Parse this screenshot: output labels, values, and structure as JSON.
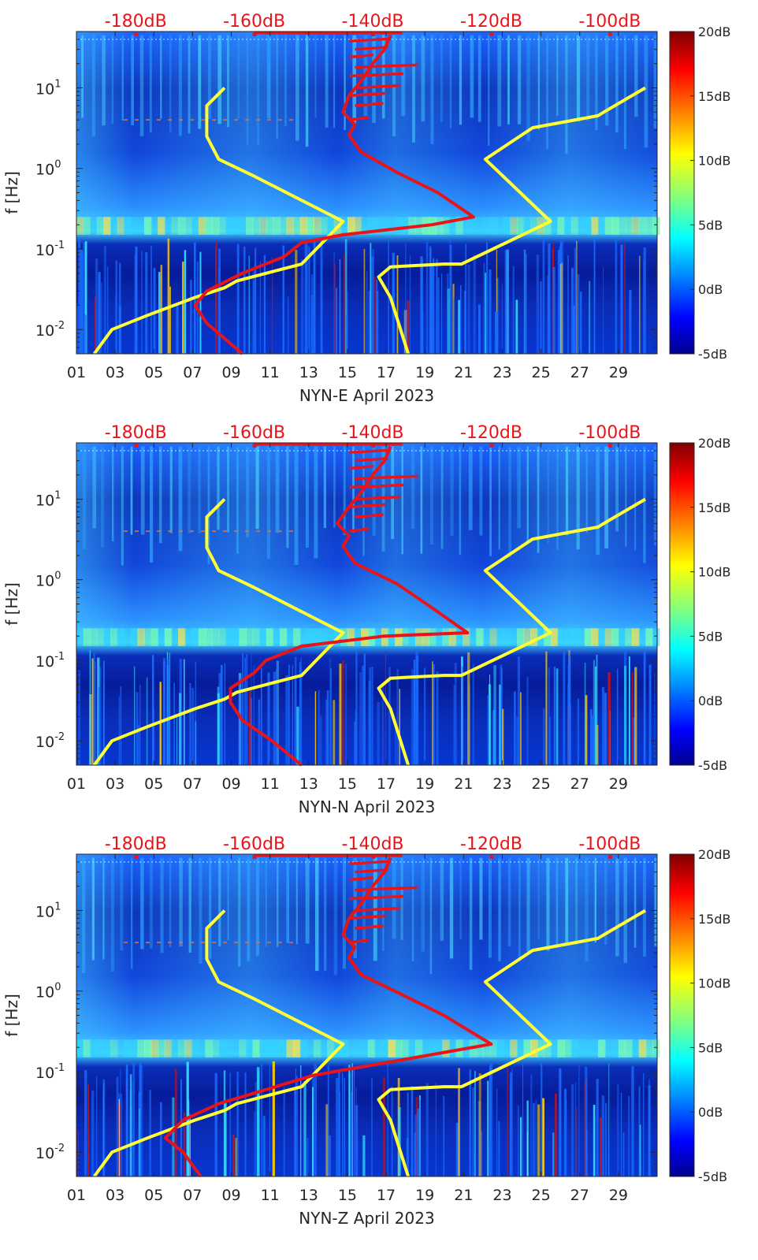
{
  "figure": {
    "colormap": [
      "#00008f",
      "#0000ff",
      "#0080ff",
      "#00ffff",
      "#80ff80",
      "#ffff00",
      "#ff8000",
      "#ff0000",
      "#800000"
    ],
    "spectrogram_background": "#0a2db8",
    "noise_model_color": "#ffff33",
    "psd_curve_color": "#e8141a"
  },
  "chart_data": [
    {
      "type": "heatmap",
      "title": "",
      "xlabel": "NYN-E April 2023",
      "ylabel": "f [Hz]",
      "xticks": [
        "01",
        "03",
        "05",
        "07",
        "09",
        "11",
        "13",
        "15",
        "17",
        "19",
        "21",
        "23",
        "25",
        "27",
        "29"
      ],
      "xlim": [
        1,
        31
      ],
      "yscale": "log",
      "ylim": [
        0.005,
        50
      ],
      "yticks": [
        {
          "value": 10,
          "base": "10",
          "exp": "1"
        },
        {
          "value": 1,
          "base": "10",
          "exp": "0"
        },
        {
          "value": 0.1,
          "base": "10",
          "exp": "-1"
        },
        {
          "value": 0.01,
          "base": "10",
          "exp": "-2"
        }
      ],
      "top_axis_labels": [
        "-180dB",
        "-160dB",
        "-140dB",
        "-120dB",
        "-100dB"
      ],
      "top_axis_range_db": [
        -190,
        -92
      ],
      "colorbar": {
        "labels": [
          "20dB",
          "15dB",
          "10dB",
          "5dB",
          "0dB",
          "-5dB"
        ],
        "range": [
          -5,
          20
        ]
      },
      "series": [
        {
          "name": "low-noise-model",
          "x_db": [
            -187,
            -184,
            -178,
            -170,
            -165,
            -163,
            -158,
            -152,
            -145,
            -160,
            -166,
            -168,
            -168,
            -165
          ],
          "f_hz": [
            0.005,
            0.01,
            0.015,
            0.025,
            0.033,
            0.04,
            0.05,
            0.065,
            0.22,
            0.8,
            1.3,
            2.5,
            6,
            10
          ]
        },
        {
          "name": "high-noise-model",
          "x_db": [
            -134,
            -137,
            -139,
            -137,
            -128,
            -125,
            -110,
            -121,
            -113,
            -102,
            -101,
            -94
          ],
          "f_hz": [
            0.005,
            0.025,
            0.045,
            0.06,
            0.065,
            0.065,
            0.22,
            1.3,
            3.2,
            4.5,
            5,
            10
          ]
        },
        {
          "name": "psd-curve",
          "x_db": [
            -162,
            -168,
            -170,
            -168,
            -162,
            -155,
            -152,
            -145,
            -130,
            -123,
            -129,
            -136,
            -142,
            -144,
            -143,
            -145,
            -144,
            -142,
            -140,
            -138,
            -137
          ],
          "f_hz": [
            0.005,
            0.012,
            0.02,
            0.03,
            0.05,
            0.08,
            0.12,
            0.15,
            0.2,
            0.25,
            0.5,
            0.9,
            1.6,
            2.6,
            3.5,
            5,
            8,
            12,
            20,
            30,
            45
          ]
        }
      ]
    },
    {
      "type": "heatmap",
      "title": "",
      "xlabel": "NYN-N April 2023",
      "ylabel": "f [Hz]",
      "xticks": [
        "01",
        "03",
        "05",
        "07",
        "09",
        "11",
        "13",
        "15",
        "17",
        "19",
        "21",
        "23",
        "25",
        "27",
        "29"
      ],
      "xlim": [
        1,
        31
      ],
      "yscale": "log",
      "ylim": [
        0.005,
        50
      ],
      "yticks": [
        {
          "value": 10,
          "base": "10",
          "exp": "1"
        },
        {
          "value": 1,
          "base": "10",
          "exp": "0"
        },
        {
          "value": 0.1,
          "base": "10",
          "exp": "-1"
        },
        {
          "value": 0.01,
          "base": "10",
          "exp": "-2"
        }
      ],
      "top_axis_labels": [
        "-180dB",
        "-160dB",
        "-140dB",
        "-120dB",
        "-100dB"
      ],
      "top_axis_range_db": [
        -190,
        -92
      ],
      "colorbar": {
        "labels": [
          "20dB",
          "15dB",
          "10dB",
          "5dB",
          "0dB",
          "-5dB"
        ],
        "range": [
          -5,
          20
        ]
      },
      "series": [
        {
          "name": "low-noise-model",
          "x_db": [
            -187,
            -184,
            -178,
            -170,
            -165,
            -163,
            -158,
            -152,
            -145,
            -160,
            -166,
            -168,
            -168,
            -165
          ],
          "f_hz": [
            0.005,
            0.01,
            0.015,
            0.025,
            0.033,
            0.04,
            0.05,
            0.065,
            0.22,
            0.8,
            1.3,
            2.5,
            6,
            10
          ]
        },
        {
          "name": "high-noise-model",
          "x_db": [
            -134,
            -137,
            -139,
            -137,
            -128,
            -125,
            -110,
            -121,
            -113,
            -102,
            -101,
            -94
          ],
          "f_hz": [
            0.005,
            0.025,
            0.045,
            0.06,
            0.065,
            0.065,
            0.22,
            1.3,
            3.2,
            4.5,
            5,
            10
          ]
        },
        {
          "name": "psd-curve",
          "x_db": [
            -152,
            -157,
            -162,
            -164,
            -164,
            -160,
            -158,
            -152,
            -138,
            -124,
            -130,
            -136,
            -143,
            -145,
            -144,
            -146,
            -144,
            -142,
            -140,
            -138,
            -137
          ],
          "f_hz": [
            0.005,
            0.01,
            0.018,
            0.03,
            0.045,
            0.07,
            0.1,
            0.15,
            0.2,
            0.22,
            0.45,
            0.9,
            1.6,
            2.6,
            3.5,
            5,
            8,
            12,
            20,
            30,
            45
          ]
        }
      ]
    },
    {
      "type": "heatmap",
      "title": "",
      "xlabel": "NYN-Z April 2023",
      "ylabel": "f [Hz]",
      "xticks": [
        "01",
        "03",
        "05",
        "07",
        "09",
        "11",
        "13",
        "15",
        "17",
        "19",
        "21",
        "23",
        "25",
        "27",
        "29"
      ],
      "xlim": [
        1,
        31
      ],
      "yscale": "log",
      "ylim": [
        0.005,
        50
      ],
      "yticks": [
        {
          "value": 10,
          "base": "10",
          "exp": "1"
        },
        {
          "value": 1,
          "base": "10",
          "exp": "0"
        },
        {
          "value": 0.1,
          "base": "10",
          "exp": "-1"
        },
        {
          "value": 0.01,
          "base": "10",
          "exp": "-2"
        }
      ],
      "top_axis_labels": [
        "-180dB",
        "-160dB",
        "-140dB",
        "-120dB",
        "-100dB"
      ],
      "top_axis_range_db": [
        -190,
        -92
      ],
      "colorbar": {
        "labels": [
          "20dB",
          "15dB",
          "10dB",
          "5dB",
          "0dB",
          "-5dB"
        ],
        "range": [
          -5,
          20
        ]
      },
      "series": [
        {
          "name": "low-noise-model",
          "x_db": [
            -187,
            -184,
            -178,
            -170,
            -165,
            -163,
            -158,
            -152,
            -145,
            -160,
            -166,
            -168,
            -168,
            -165
          ],
          "f_hz": [
            0.005,
            0.01,
            0.015,
            0.025,
            0.033,
            0.04,
            0.05,
            0.065,
            0.22,
            0.8,
            1.3,
            2.5,
            6,
            10
          ]
        },
        {
          "name": "high-noise-model",
          "x_db": [
            -134,
            -137,
            -139,
            -137,
            -128,
            -125,
            -110,
            -121,
            -113,
            -102,
            -101,
            -94
          ],
          "f_hz": [
            0.005,
            0.025,
            0.045,
            0.06,
            0.065,
            0.065,
            0.22,
            1.3,
            3.2,
            4.5,
            5,
            10
          ]
        },
        {
          "name": "psd-curve",
          "x_db": [
            -169,
            -172,
            -175,
            -172,
            -166,
            -158,
            -150,
            -135,
            -120,
            -128,
            -135,
            -142,
            -144,
            -143,
            -145,
            -144,
            -142,
            -140,
            -138,
            -137
          ],
          "f_hz": [
            0.005,
            0.01,
            0.015,
            0.025,
            0.04,
            0.06,
            0.09,
            0.14,
            0.22,
            0.5,
            0.9,
            1.6,
            2.6,
            3.5,
            5,
            8,
            12,
            20,
            30,
            45
          ]
        }
      ]
    }
  ]
}
